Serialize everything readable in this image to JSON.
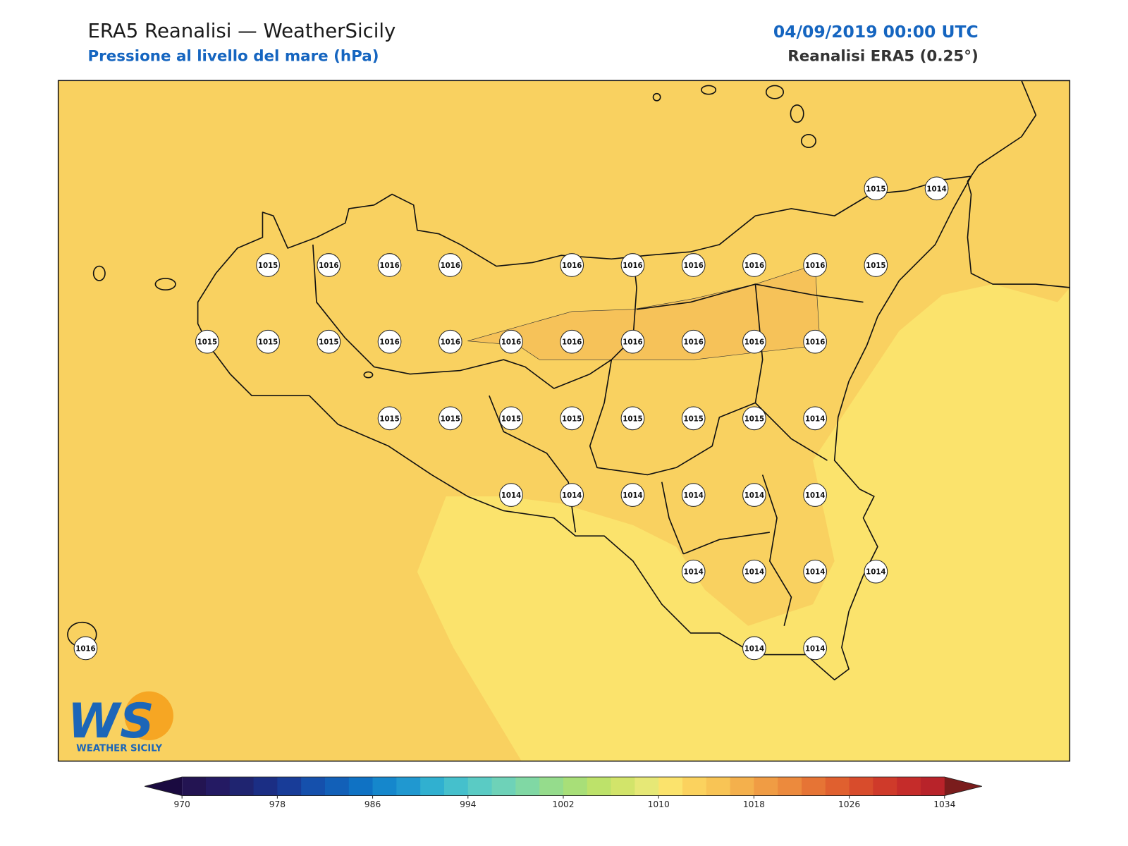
{
  "header": {
    "title": "ERA5 Reanalisi — WeatherSicily",
    "subtitle": "Pressione al livello del mare (hPa)",
    "date": "04/09/2019 00:00 UTC",
    "source": "Reanalisi ERA5 (0.25°)"
  },
  "stations": {
    "rows": [
      [
        null,
        null,
        null,
        null,
        null,
        null,
        null,
        null,
        null,
        null,
        null,
        null,
        null,
        1015,
        1014
      ],
      [
        null,
        null,
        null,
        1015,
        1016,
        1016,
        1016,
        null,
        1016,
        1016,
        1016,
        1016,
        1016,
        1015,
        null
      ],
      [
        null,
        null,
        1015,
        1015,
        1015,
        1016,
        1016,
        1016,
        1016,
        1016,
        1016,
        1016,
        1016,
        null,
        null
      ],
      [
        null,
        null,
        null,
        null,
        null,
        1015,
        1015,
        1015,
        1015,
        1015,
        1015,
        1015,
        1014,
        null,
        null
      ],
      [
        null,
        null,
        null,
        null,
        null,
        null,
        null,
        1014,
        1014,
        1014,
        1014,
        1014,
        1014,
        null,
        null
      ],
      [
        null,
        null,
        null,
        null,
        null,
        null,
        null,
        null,
        null,
        null,
        1014,
        1014,
        1014,
        1014,
        null
      ],
      [
        1016,
        null,
        null,
        null,
        null,
        null,
        null,
        null,
        null,
        null,
        null,
        1014,
        1014,
        null,
        null
      ]
    ]
  },
  "colorbar": {
    "range": [
      970,
      1034
    ],
    "ticks": [
      970,
      978,
      986,
      994,
      1002,
      1010,
      1018,
      1026,
      1034
    ],
    "colors": [
      "#231452",
      "#241a63",
      "#1f2470",
      "#1b2e84",
      "#183c98",
      "#1550ac",
      "#1260b8",
      "#0f72c4",
      "#1587cc",
      "#2098d0",
      "#30b0d0",
      "#45c0cc",
      "#5acbc4",
      "#6ed2b8",
      "#80d8a4",
      "#95dc8c",
      "#a8df78",
      "#bde26a",
      "#d2e46a",
      "#e6e876",
      "#fbe36c",
      "#fbd25e",
      "#f8c455",
      "#f4b04c",
      "#f09c44",
      "#ec8a3d",
      "#e67435",
      "#e0602f",
      "#d84c2c",
      "#cf3a2a",
      "#c52c2a",
      "#b8232a"
    ],
    "extend_low_color": "#1a0a40",
    "extend_high_color": "#7a1c1c"
  },
  "logo": {
    "mark": "WS",
    "text": "WEATHER SICILY"
  }
}
